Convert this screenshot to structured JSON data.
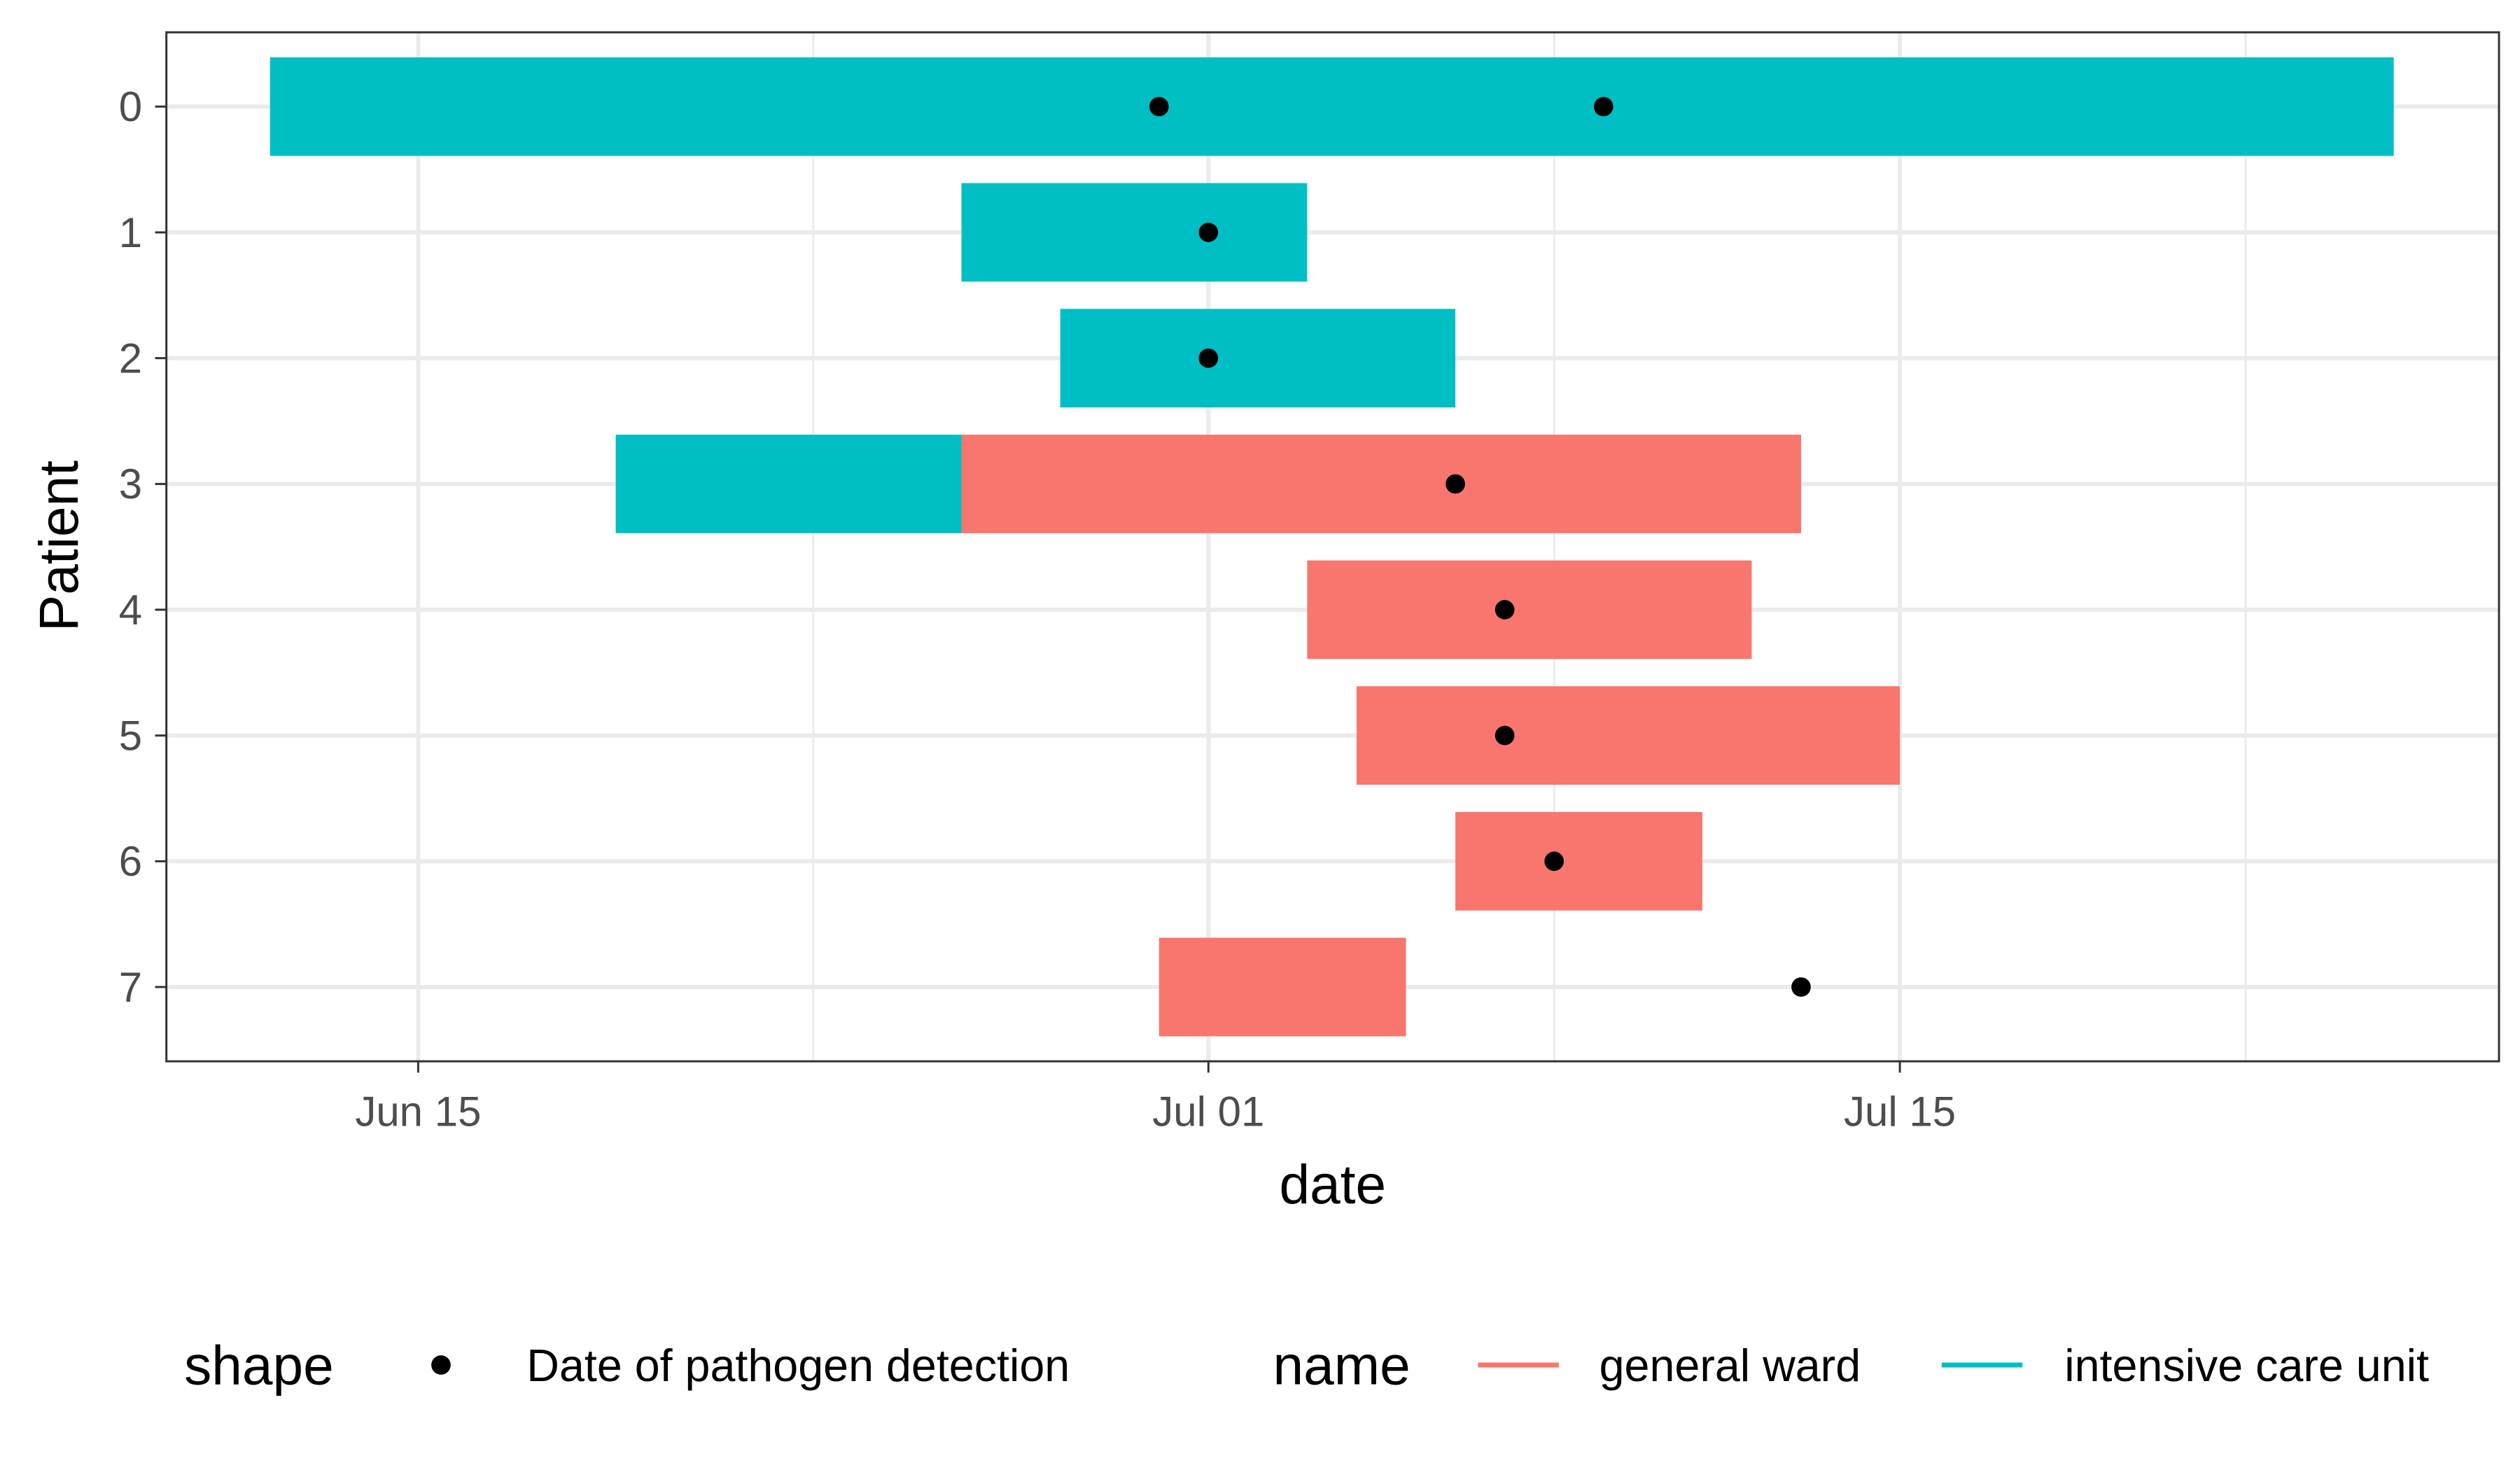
{
  "chart_data": {
    "type": "gantt",
    "xlabel": "date",
    "ylabel": "Patient",
    "xlim": [
      "06-10",
      "07-27"
    ],
    "x_ticks": [
      {
        "date": "06-15",
        "label": "Jun 15"
      },
      {
        "date": "07-01",
        "label": "Jul 01"
      },
      {
        "date": "07-15",
        "label": "Jul 15"
      }
    ],
    "x_minor_ticks": [
      "06-23",
      "07-08",
      "07-22"
    ],
    "y_categories": [
      "0",
      "1",
      "2",
      "3",
      "4",
      "5",
      "6",
      "7"
    ],
    "grid": true,
    "legend_position": "bottom",
    "colors": {
      "general ward": "#F8766D",
      "intensive care unit": "#00BFC4"
    },
    "stays": [
      {
        "patient": "0",
        "name": "intensive care unit",
        "start": "06-12",
        "end": "07-25"
      },
      {
        "patient": "1",
        "name": "intensive care unit",
        "start": "06-26",
        "end": "07-03"
      },
      {
        "patient": "2",
        "name": "intensive care unit",
        "start": "06-28",
        "end": "07-06"
      },
      {
        "patient": "3",
        "name": "intensive care unit",
        "start": "06-19",
        "end": "06-26"
      },
      {
        "patient": "3",
        "name": "general ward",
        "start": "06-26",
        "end": "07-13"
      },
      {
        "patient": "4",
        "name": "general ward",
        "start": "07-03",
        "end": "07-12"
      },
      {
        "patient": "5",
        "name": "general ward",
        "start": "07-04",
        "end": "07-15"
      },
      {
        "patient": "6",
        "name": "general ward",
        "start": "07-06",
        "end": "07-11"
      },
      {
        "patient": "7",
        "name": "general ward",
        "start": "06-30",
        "end": "07-05"
      }
    ],
    "detections": [
      {
        "patient": "0",
        "date": "06-30"
      },
      {
        "patient": "0",
        "date": "07-09"
      },
      {
        "patient": "1",
        "date": "07-01"
      },
      {
        "patient": "2",
        "date": "07-01"
      },
      {
        "patient": "3",
        "date": "07-06"
      },
      {
        "patient": "4",
        "date": "07-07"
      },
      {
        "patient": "5",
        "date": "07-07"
      },
      {
        "patient": "6",
        "date": "07-08"
      },
      {
        "patient": "7",
        "date": "07-13"
      }
    ],
    "legend": {
      "shape_title": "shape",
      "shape_label": "Date of pathogen detection",
      "name_title": "name",
      "name_labels": [
        "general ward",
        "intensive care unit"
      ]
    }
  }
}
